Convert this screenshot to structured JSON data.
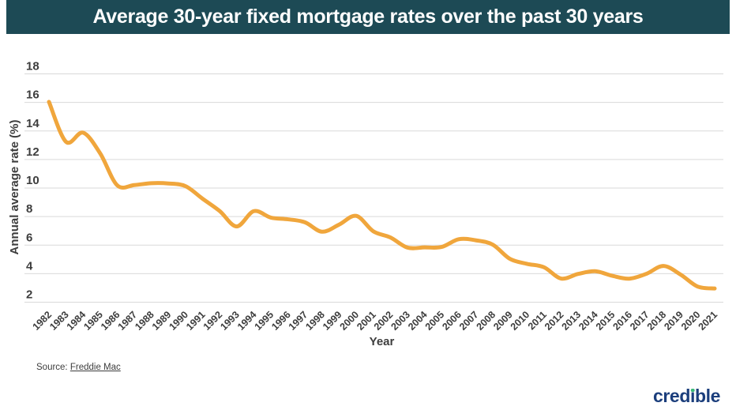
{
  "header": {
    "bg_color": "#1d4a55",
    "text_color": "#ffffff"
  },
  "chart_data": {
    "type": "line",
    "title": "Average 30-year fixed mortgage rates over the past 30 years",
    "xlabel": "Year",
    "ylabel": "Annual average rate (%)",
    "x": [
      1982,
      1983,
      1984,
      1985,
      1986,
      1987,
      1988,
      1989,
      1990,
      1991,
      1992,
      1993,
      1994,
      1995,
      1996,
      1997,
      1998,
      1999,
      2000,
      2001,
      2002,
      2003,
      2004,
      2005,
      2006,
      2007,
      2008,
      2009,
      2010,
      2011,
      2012,
      2013,
      2014,
      2015,
      2016,
      2017,
      2018,
      2019,
      2020,
      2021
    ],
    "series": [
      {
        "name": "Average 30-year fixed mortgage rate",
        "color": "#f0a63c",
        "values": [
          16.04,
          13.24,
          13.88,
          12.43,
          10.19,
          10.21,
          10.34,
          10.32,
          10.13,
          9.25,
          8.39,
          7.31,
          8.38,
          7.93,
          7.81,
          7.6,
          6.94,
          7.44,
          8.05,
          6.97,
          6.54,
          5.83,
          5.84,
          5.87,
          6.41,
          6.34,
          6.03,
          5.04,
          4.69,
          4.45,
          3.66,
          3.98,
          4.17,
          3.85,
          3.65,
          3.99,
          4.54,
          3.94,
          3.1,
          2.96
        ]
      }
    ],
    "ylim": [
      2,
      18
    ],
    "yticks": [
      2,
      4,
      6,
      8,
      10,
      12,
      14,
      16,
      18
    ],
    "grid": "horizontal",
    "grid_color": "#d9d9d9",
    "tick_label_color": "#3d3d3d",
    "legend": "none"
  },
  "footer": {
    "source_prefix": "Source:",
    "source_link_label": "Freddie Mac",
    "logo": {
      "brand": "credible",
      "part_pre": "cred",
      "part_i_dotless": "ı",
      "part_post": "ble",
      "navy": "#1b3e7c",
      "green": "#3bb878"
    }
  }
}
